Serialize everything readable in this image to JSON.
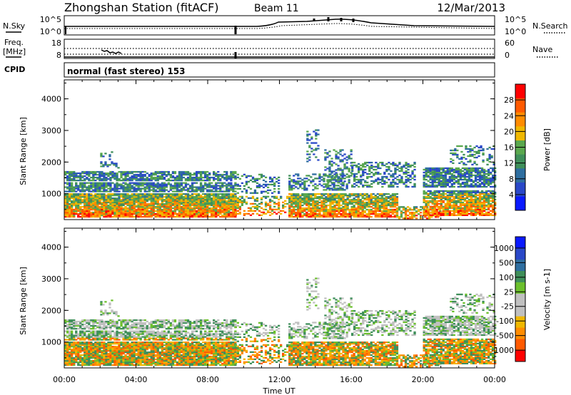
{
  "header": {
    "title": "Zhongshan Station (fitACF)",
    "beam": "Beam 11",
    "date": "12/Mar/2013"
  },
  "summary_panels": {
    "nsky": {
      "left_label": "N.Sky",
      "right_label": "N.Search",
      "left_ticks": [
        "10^5",
        "10^0"
      ],
      "right_ticks": [
        "10^5",
        "10^0"
      ]
    },
    "freq": {
      "left_label_1": "Freq.",
      "left_label_2": "[MHz]",
      "right_label": "Nave",
      "left_ticks": [
        "18",
        "8"
      ],
      "right_ticks": [
        "60",
        "0"
      ]
    },
    "cpid": {
      "label": "CPID",
      "text": "normal (fast stereo) 153"
    }
  },
  "colors": {
    "power_scale": [
      "#0a1aff",
      "#2a48c8",
      "#2e6ea0",
      "#3f8f5a",
      "#5aa84e",
      "#f0b800",
      "#ff8c00",
      "#ff5a00",
      "#ff0000"
    ],
    "velocity_scale": [
      "#ff0000",
      "#ff5a00",
      "#ff8c00",
      "#f0b800",
      "#c0c0c0",
      "#c0c0c0",
      "#6cc02c",
      "#3f8f5a",
      "#2e6ea0",
      "#2a48c8",
      "#0a1aff"
    ]
  },
  "chart_data": [
    {
      "type": "heatmap",
      "name": "power",
      "ylabel": "Slant Range [km]",
      "ylim": [
        180,
        4600
      ],
      "yticks": [
        "1000",
        "2000",
        "3000",
        "4000"
      ],
      "ytick_values": [
        1000,
        2000,
        3000,
        4000
      ],
      "xlim": [
        0,
        24
      ],
      "colorbar_label": "Power [dB]",
      "colorbar_ticks": [
        "4",
        "8",
        "12",
        "16",
        "20",
        "24",
        "28"
      ],
      "colorbar_range": [
        0,
        32
      ]
    },
    {
      "type": "heatmap",
      "name": "velocity",
      "ylabel": "Slant Range [km]",
      "ylim": [
        180,
        4600
      ],
      "yticks": [
        "1000",
        "2000",
        "3000",
        "4000"
      ],
      "ytick_values": [
        1000,
        2000,
        3000,
        4000
      ],
      "xlim": [
        0,
        24
      ],
      "xlabel": "Time UT",
      "xticks": [
        "00:00",
        "04:00",
        "08:00",
        "12:00",
        "16:00",
        "20:00",
        "00:00"
      ],
      "xtick_values": [
        0,
        4,
        8,
        12,
        16,
        20,
        24
      ],
      "colorbar_label": "Velocity [m s-1]",
      "colorbar_ticks": [
        "1000",
        "500",
        "100",
        "25",
        "-25",
        "-100",
        "-500",
        "-1000"
      ]
    }
  ]
}
